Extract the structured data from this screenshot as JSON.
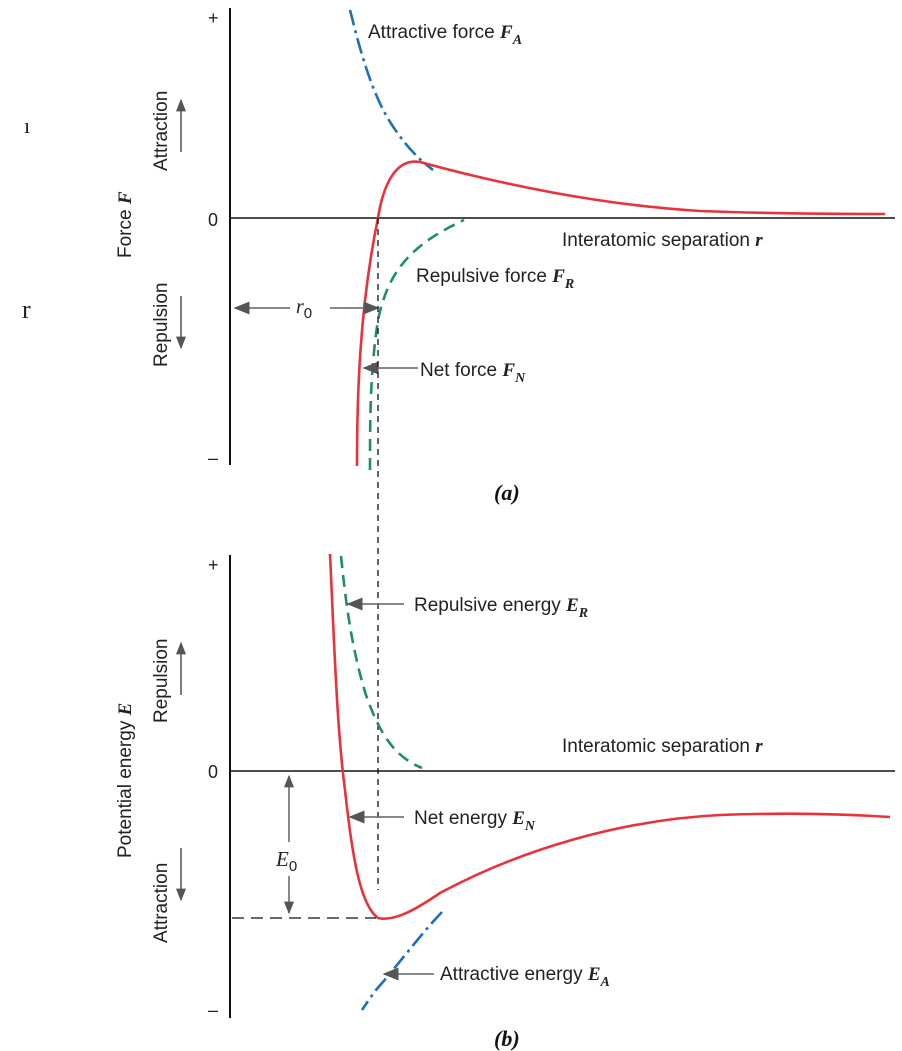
{
  "panel_a": {
    "caption": "(a)",
    "y_axis_label": "Force",
    "y_axis_symbol": "F",
    "plus_tick": "+",
    "zero_tick": "0",
    "minus_tick": "–",
    "upper_region": "Attraction",
    "lower_region": "Repulsion",
    "x_axis_label": "Interatomic separation",
    "x_axis_symbol": "r",
    "attractive_label": "Attractive force",
    "attractive_sym": "F",
    "attractive_sub": "A",
    "repulsive_label": "Repulsive force",
    "repulsive_sym": "F",
    "repulsive_sub": "R",
    "net_label": "Net force",
    "net_sym": "F",
    "net_sub": "N",
    "r0_sym": "r",
    "r0_sub": "0"
  },
  "panel_b": {
    "caption": "(b)",
    "y_axis_label": "Potential energy",
    "y_axis_symbol": "E",
    "plus_tick": "+",
    "zero_tick": "0",
    "minus_tick": "–",
    "upper_region": "Repulsion",
    "lower_region": "Attraction",
    "x_axis_label": "Interatomic separation",
    "x_axis_symbol": "r",
    "repulsive_label": "Repulsive energy",
    "repulsive_sym": "E",
    "repulsive_sub": "R",
    "net_label": "Net energy",
    "net_sym": "E",
    "net_sub": "N",
    "attractive_label": "Attractive energy",
    "attractive_sym": "E",
    "attractive_sub": "A",
    "e0_sym": "E",
    "e0_sub": "0"
  },
  "margin_fragments": {
    "top": "ı",
    "middle": "r"
  },
  "colors": {
    "net_curve": "#e8323c",
    "attractive_curve": "#1f6fb8",
    "repulsive_curve": "#1e8f5e",
    "axis": "#111111",
    "pointer": "#777777"
  }
}
